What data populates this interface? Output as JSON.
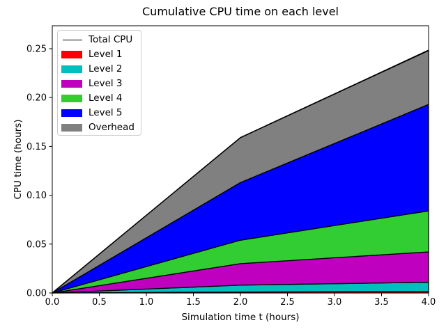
{
  "chart_data": {
    "type": "area",
    "stacked": true,
    "title": "Cumulative CPU time on each level",
    "xlabel": "Simulation time t (hours)",
    "ylabel": "CPU time (hours)",
    "x": [
      0,
      2,
      4
    ],
    "series": [
      {
        "name": "Level 1",
        "color": "#ff0000",
        "values": [
          0,
          0.001,
          0.0015
        ]
      },
      {
        "name": "Level 2",
        "color": "#00bfbf",
        "values": [
          0,
          0.007,
          0.0095
        ]
      },
      {
        "name": "Level 3",
        "color": "#bf00bf",
        "values": [
          0,
          0.022,
          0.031
        ]
      },
      {
        "name": "Level 4",
        "color": "#32cd32",
        "values": [
          0,
          0.024,
          0.042
        ]
      },
      {
        "name": "Level 5",
        "color": "#0000ff",
        "values": [
          0,
          0.059,
          0.109
        ]
      },
      {
        "name": "Overhead",
        "color": "#808080",
        "values": [
          0,
          0.046,
          0.055
        ]
      }
    ],
    "total_line": {
      "name": "Total CPU",
      "color": "#000000",
      "values": [
        0,
        0.159,
        0.2485
      ]
    },
    "xlim": [
      0,
      4
    ],
    "ylim": [
      0,
      0.2735
    ],
    "x_ticks": [
      0,
      0.5,
      1,
      1.5,
      2,
      2.5,
      3,
      3.5,
      4
    ],
    "x_ticklabels": [
      "0.0",
      "0.5",
      "1.0",
      "1.5",
      "2.0",
      "2.5",
      "3.0",
      "3.5",
      "4.0"
    ],
    "y_ticks": [
      0,
      0.05,
      0.1,
      0.15,
      0.2,
      0.25
    ],
    "y_ticklabels": [
      "0.00",
      "0.05",
      "0.10",
      "0.15",
      "0.20",
      "0.25"
    ],
    "grid": false,
    "edge_color": "#000000",
    "background": "#ffffff",
    "legend": {
      "position": "upper-left",
      "entries": [
        {
          "label": "Total CPU",
          "swatch": "line",
          "color": "#000000"
        },
        {
          "label": "Level 1",
          "swatch": "patch",
          "color": "#ff0000"
        },
        {
          "label": "Level 2",
          "swatch": "patch",
          "color": "#00bfbf"
        },
        {
          "label": "Level 3",
          "swatch": "patch",
          "color": "#bf00bf"
        },
        {
          "label": "Level 4",
          "swatch": "patch",
          "color": "#32cd32"
        },
        {
          "label": "Level 5",
          "swatch": "patch",
          "color": "#0000ff"
        },
        {
          "label": "Overhead",
          "swatch": "patch",
          "color": "#808080"
        }
      ]
    }
  }
}
